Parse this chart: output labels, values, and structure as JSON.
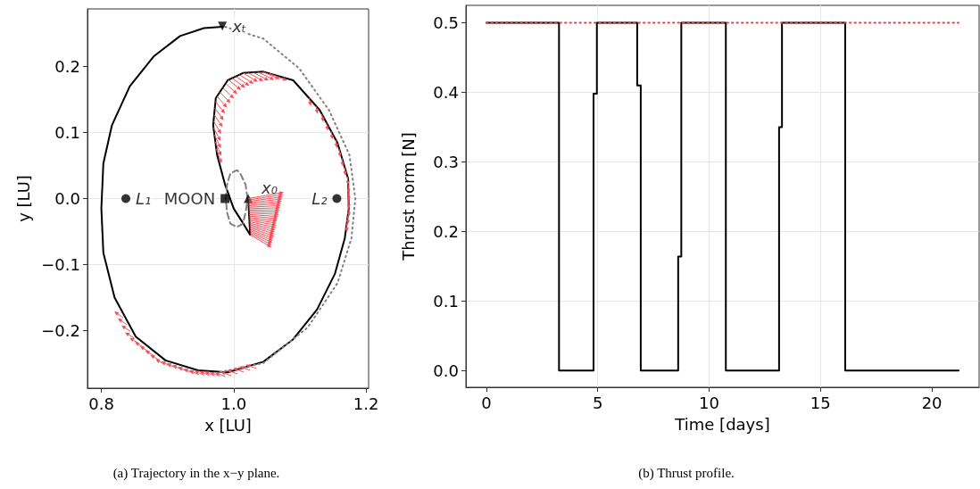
{
  "chart_data": [
    {
      "type": "line",
      "title": "(a) Trajectory in the x−y plane.",
      "xlabel": "x [LU]",
      "ylabel": "y [LU]",
      "xlim": [
        0.779,
        1.204
      ],
      "ylim": [
        -0.287,
        0.287
      ],
      "xticks": [
        0.8,
        {
          "value": 1,
          "label": "1.0"
        },
        1.2
      ],
      "yticks": [
        {
          "value": -0.2,
          "label": "−0.2"
        },
        {
          "value": -0.1,
          "label": "−0.1"
        },
        {
          "value": 0,
          "label": "0.0"
        },
        0.1,
        0.2
      ],
      "grid": true,
      "marker": "none",
      "series": [
        {
          "type": "line",
          "color": "#000000",
          "line_style": "solid",
          "x": [
            1.022,
            1.025,
            1.014,
            1.0,
            0.987,
            0.975,
            0.969,
            0.973,
            0.991,
            1.014,
            1.045,
            1.09,
            1.13,
            1.157,
            1.173,
            1.174,
            1.168,
            1.153,
            1.126,
            1.09,
            1.045,
            0.991,
            0.946,
            0.897,
            0.852,
            0.82,
            0.803,
            0.8,
            0.803,
            0.816,
            0.843,
            0.879,
            0.919,
            0.955,
            0.983
          ],
          "values": [
            0,
            -0.055,
            -0.037,
            -0.015,
            0.021,
            0.066,
            0.111,
            0.152,
            0.179,
            0.19,
            0.192,
            0.179,
            0.134,
            0.084,
            0.03,
            -0.015,
            -0.06,
            -0.114,
            -0.168,
            -0.213,
            -0.247,
            -0.263,
            -0.26,
            -0.245,
            -0.209,
            -0.15,
            -0.082,
            -0.015,
            0.053,
            0.111,
            0.17,
            0.215,
            0.246,
            0.258,
            0.26
          ]
        },
        {
          "type": "line",
          "color": "#808080",
          "line_style": "dotted",
          "x": [
            0.987,
            1.045,
            1.099,
            1.144,
            1.175,
            1.184,
            1.178,
            1.157,
            1.112,
            1.045,
            0.978
          ],
          "values": [
            0.26,
            0.242,
            0.197,
            0.134,
            0.066,
            0,
            -0.06,
            -0.128,
            -0.195,
            -0.249,
            -0.263
          ]
        },
        {
          "type": "line",
          "color": "#808080",
          "line_style": "dashed",
          "x": [
            1.021,
            1.018,
            1.01,
            1.005,
            0.995,
            0.99,
            0.988,
            0.99,
            0.995,
            1.005,
            1.014,
            1.018,
            1.021
          ],
          "values": [
            0,
            0.021,
            0.038,
            0.043,
            0.038,
            0.021,
            0,
            -0.021,
            -0.038,
            -0.043,
            -0.038,
            -0.021,
            -0.002
          ]
        },
        {
          "type": "scatter",
          "name": "L₁",
          "color": "#000000",
          "marker": "circle",
          "x": [
            0.837
          ],
          "values": [
            0
          ]
        },
        {
          "type": "scatter",
          "name": "MOON",
          "color": "#000000",
          "marker": "square",
          "x": [
            0.987
          ],
          "values": [
            0
          ]
        },
        {
          "type": "scatter",
          "name": "x₀",
          "color": "#000000",
          "marker": "triangle",
          "x": [
            1.022
          ],
          "values": [
            0
          ]
        },
        {
          "type": "scatter",
          "name": "L₂",
          "color": "#000000",
          "marker": "circle",
          "x": [
            1.156
          ],
          "values": [
            0
          ]
        },
        {
          "type": "scatter",
          "name": "xₜ",
          "color": "#000000",
          "marker": "triangle",
          "x": [
            0.983
          ],
          "values": [
            0.261
          ]
        }
      ]
    },
    {
      "type": "line",
      "title": "(b) Thrust profile.",
      "xlabel": "Time [days]",
      "ylabel": "Thrust norm [N]",
      "xlim": [
        -0.92,
        22.12
      ],
      "ylim": [
        -0.024,
        0.525
      ],
      "xticks": [
        0,
        5,
        10,
        15,
        20
      ],
      "yticks": [
        {
          "value": 0,
          "label": "0.0"
        },
        0.1,
        0.2,
        0.3,
        0.4,
        0.5
      ],
      "grid": true,
      "marker": "none",
      "series": [
        {
          "type": "line",
          "color": "#000000",
          "line_style": "solid",
          "x": [
            0,
            3.26,
            3.26,
            4.81,
            4.81,
            4.96,
            4.96,
            6.77,
            6.77,
            6.93,
            6.93,
            8.61,
            8.61,
            8.75,
            8.75,
            10.75,
            10.75,
            13.14,
            13.14,
            13.27,
            13.27,
            16.11,
            16.11,
            21.2
          ],
          "values": [
            0.5,
            0.5,
            0,
            0,
            0.398,
            0.398,
            0.5,
            0.5,
            0.41,
            0.41,
            0,
            0,
            0.164,
            0.164,
            0.5,
            0.5,
            0,
            0,
            0.35,
            0.35,
            0.5,
            0.5,
            0,
            0
          ]
        },
        {
          "type": "line",
          "color": "#e8434f",
          "line_style": "dotted",
          "x": [
            0,
            21.2
          ],
          "values": [
            0.5,
            0.5
          ]
        }
      ]
    }
  ]
}
